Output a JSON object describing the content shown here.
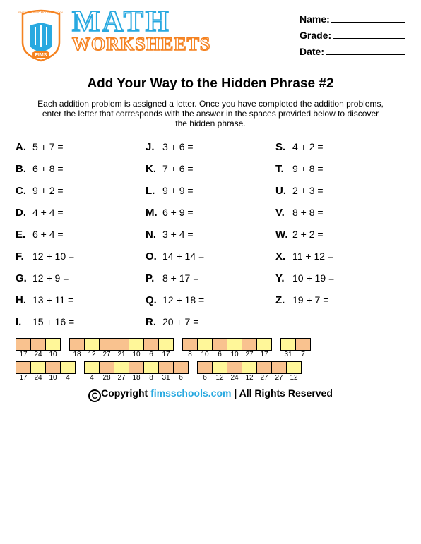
{
  "header": {
    "logo_top": "FAISAL ISLAMIC",
    "logo_top2": "MODEL SCHOOL",
    "logo_bottom": "FIMS",
    "title1": "MATH",
    "title2": "WORKSHEETS",
    "info": {
      "name": "Name:",
      "grade": "Grade:",
      "date": "Date:"
    }
  },
  "title": "Add Your Way to the Hidden Phrase #2",
  "instructions": "Each addition problem is assigned a letter. Once you have completed the addition problems, enter the letter that corresponds with the answer in the spaces provided below to discover the hidden phrase.",
  "col1": [
    {
      "l": "A.",
      "e": "5 + 7 ="
    },
    {
      "l": "B.",
      "e": "6 + 8 ="
    },
    {
      "l": "C.",
      "e": "9 + 2 ="
    },
    {
      "l": "D.",
      "e": "4 + 4 ="
    },
    {
      "l": "E.",
      "e": "6 + 4 ="
    },
    {
      "l": "F.",
      "e": "12 + 10 ="
    },
    {
      "l": "G.",
      "e": "12 + 9 ="
    },
    {
      "l": "H.",
      "e": "13 + 11 ="
    },
    {
      "l": "I.",
      "e": "15 + 16 ="
    }
  ],
  "col2": [
    {
      "l": "J.",
      "e": "3 + 6 ="
    },
    {
      "l": "K.",
      "e": "7 + 6 ="
    },
    {
      "l": "L.",
      "e": "9 + 9 ="
    },
    {
      "l": "M.",
      "e": "6 + 9 ="
    },
    {
      "l": "N.",
      "e": "3 + 4 ="
    },
    {
      "l": "O.",
      "e": "14 + 14 ="
    },
    {
      "l": "P.",
      "e": "8 + 17 ="
    },
    {
      "l": "Q.",
      "e": "12 + 18 ="
    },
    {
      "l": "R.",
      "e": "20 + 7 ="
    }
  ],
  "col3": [
    {
      "l": "S.",
      "e": "4 + 2 ="
    },
    {
      "l": "T.",
      "e": "9 + 8 ="
    },
    {
      "l": "U.",
      "e": "2 + 3 ="
    },
    {
      "l": "V.",
      "e": "8 + 8 ="
    },
    {
      "l": "W.",
      "e": "2 + 2  ="
    },
    {
      "l": "X.",
      "e": "11 + 12 ="
    },
    {
      "l": "Y.",
      "e": "10 + 19 ="
    },
    {
      "l": "Z.",
      "e": "19 + 7 ="
    }
  ],
  "row1": [
    {
      "colors": [
        "o",
        "o",
        "y"
      ],
      "nums": [
        "17",
        "24",
        "10"
      ]
    },
    {
      "colors": [
        "o",
        "y",
        "o",
        "o",
        "y",
        "o",
        "y"
      ],
      "nums": [
        "18",
        "12",
        "27",
        "21",
        "10",
        "6",
        "17"
      ]
    },
    {
      "colors": [
        "o",
        "y",
        "o",
        "y",
        "o",
        "y"
      ],
      "nums": [
        "8",
        "10",
        "6",
        "10",
        "27",
        "17"
      ]
    },
    {
      "colors": [
        "y",
        "o"
      ],
      "nums": [
        "31",
        "7"
      ]
    }
  ],
  "row2": [
    {
      "colors": [
        "o",
        "y",
        "o",
        "y"
      ],
      "nums": [
        "17",
        "24",
        "10",
        "4"
      ]
    },
    {
      "colors": [
        "y",
        "o",
        "y",
        "o",
        "y",
        "o",
        "o"
      ],
      "nums": [
        "4",
        "28",
        "27",
        "18",
        "8",
        "31",
        "6"
      ]
    },
    {
      "colors": [
        "o",
        "y",
        "o",
        "y",
        "o",
        "o",
        "y"
      ],
      "nums": [
        "6",
        "12",
        "24",
        "12",
        "27",
        "27",
        "12"
      ]
    }
  ],
  "footer": {
    "pre": "Copyright ",
    "site": "fimsschools.com",
    "post": " | All Rights Reserved"
  },
  "colors": {
    "blue": "#29a9e0",
    "orange_text": "#f58220",
    "box_orange": "#f9c28f",
    "box_yellow": "#fff799"
  }
}
